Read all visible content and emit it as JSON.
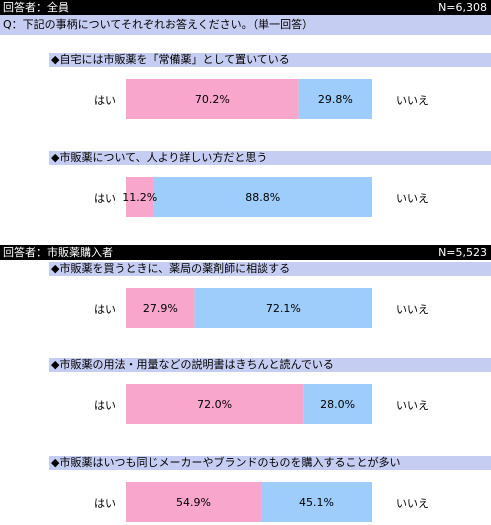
{
  "header1": {
    "label": "回答者：全員",
    "n": "N=6,308"
  },
  "question_text": "Q：下記の事柄についてそれぞれお答えください。（単一回答）",
  "header2": {
    "label": "回答者：市販薬購入者",
    "n": "N=5,523"
  },
  "axis_labels": {
    "left": "はい",
    "right": "いいえ"
  },
  "colors": {
    "yes": "#f9a6cd",
    "no": "#9fcdfb",
    "header_bg": "#000000",
    "question_bg": "#c6cdf2"
  },
  "chart_data": {
    "type": "bar",
    "orientation": "horizontal-stacked-100",
    "legend": [
      "はい",
      "いいえ"
    ],
    "items": [
      {
        "title": "◆自宅には市販薬を「常備薬」として置いている",
        "yes": 70.2,
        "no": 29.8,
        "yes_label": "70.2%",
        "no_label": "29.8%"
      },
      {
        "title": "◆市販薬について、人より詳しい方だと思う",
        "yes": 11.2,
        "no": 88.8,
        "yes_label": "11.2%",
        "no_label": "88.8%"
      },
      {
        "title": "◆市販薬を買うときに、薬局の薬剤師に相談する",
        "yes": 27.9,
        "no": 72.1,
        "yes_label": "27.9%",
        "no_label": "72.1%"
      },
      {
        "title": "◆市販薬の用法・用量などの説明書はきちんと読んでいる",
        "yes": 72.0,
        "no": 28.0,
        "yes_label": "72.0%",
        "no_label": "28.0%"
      },
      {
        "title": "◆市販薬はいつも同じメーカーやブランドのものを購入することが多い",
        "yes": 54.9,
        "no": 45.1,
        "yes_label": "54.9%",
        "no_label": "45.1%"
      }
    ]
  }
}
